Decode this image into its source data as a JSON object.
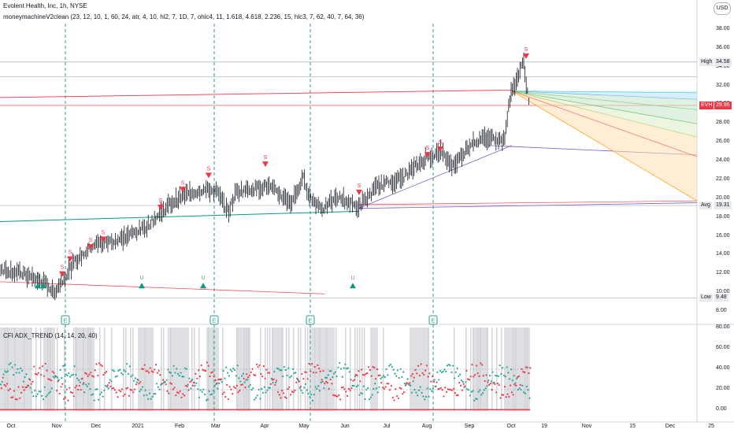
{
  "header": {
    "title": "Evolent Health, Inc, 1h, NYSE",
    "indicator": "moneymachineV2clean (23, 12, 10, 1, 60, 24, atr, 4, 10, hl2, 7, 1D, 7, ohlc4, 11, 1.618, 4.618, 2.236, 15, hlc3, 7, 62, 40, 7, 64, 36)",
    "currency": "USD"
  },
  "subpane": {
    "title": "CFI ADX_TREND (14, 14, 20, 40)"
  },
  "price_axis": {
    "labels": [
      "38.00",
      "36.00",
      "34.00",
      "32.00",
      "30.00",
      "28.00",
      "26.00",
      "24.00",
      "22.00",
      "20.00",
      "18.00",
      "16.00",
      "14.00",
      "12.00",
      "10.00",
      "8.00"
    ],
    "tags": [
      {
        "text": "High",
        "value": "34.58",
        "style": "grey"
      },
      {
        "text": "EVH",
        "value": "29.96",
        "style": "red"
      },
      {
        "text": "Avg",
        "value": "19.31",
        "style": "grey"
      },
      {
        "text": "Low",
        "value": "9.48",
        "style": "grey"
      }
    ]
  },
  "adx_axis": {
    "labels": [
      "80.00",
      "60.00",
      "40.00",
      "20.00",
      "0.00"
    ]
  },
  "x_axis": {
    "labels": [
      "Oct",
      "Nov",
      "Dec",
      "2021",
      "Feb",
      "Mar",
      "Apr",
      "May",
      "Jun",
      "Jul",
      "Aug",
      "Sep",
      "Oct",
      "19",
      "Nov",
      "15",
      "Dec",
      "25"
    ]
  },
  "chart_data": [
    {
      "type": "line",
      "title": "Evolent Health, Inc, 1h, NYSE",
      "ylabel": "USD",
      "ylim": [
        8,
        38.5
      ],
      "x": [
        "Oct",
        "Nov",
        "Dec",
        "2021",
        "Feb",
        "Mar",
        "Apr",
        "May",
        "Jun",
        "Jul",
        "Aug",
        "Sep",
        "Oct"
      ],
      "series": [
        {
          "values": [
            12.6,
            11.5,
            13.3,
            15.4,
            17.5,
            20.3,
            19.0,
            21.0,
            20.5,
            20.2,
            23.0,
            25.5,
            31.5
          ]
        }
      ],
      "signals": {
        "sell_label": "S",
        "buy_label": "U",
        "sell_count": 15,
        "buy_count": 6
      },
      "earnings_marker": "E",
      "stats": {
        "high": 34.58,
        "last": 29.96,
        "avg": 19.31,
        "low": 9.48
      }
    },
    {
      "type": "line",
      "title": "CFI ADX_TREND (14, 14, 20, 40)",
      "ylim": [
        0,
        80
      ],
      "levels": [
        20,
        40
      ],
      "series": [
        {
          "values": [
            30,
            22,
            35,
            25,
            40,
            28,
            33,
            26,
            38,
            30,
            45,
            35,
            55
          ]
        },
        {
          "values": [
            25,
            35,
            20,
            30,
            22,
            34,
            24,
            32,
            20,
            28,
            18,
            25,
            15
          ]
        }
      ]
    }
  ],
  "colors": {
    "sell": "#f23645",
    "buy": "#089981",
    "candle": "#131722",
    "adx_pos": "#26a69a",
    "adx_neg": "#f23645",
    "earnings_line": "#2a9d8f",
    "grey_band": "#cfd1d6"
  }
}
